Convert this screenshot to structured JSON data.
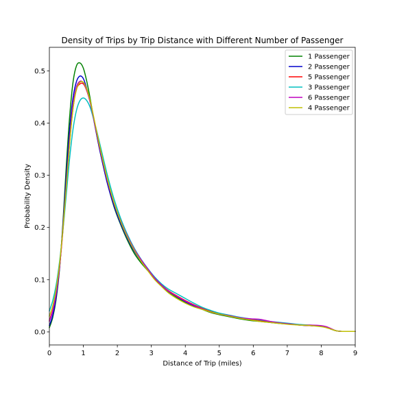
{
  "chart_data": {
    "type": "line",
    "title": "Density of Trips by Trip Distance with Different Number of Passenger",
    "xlabel": "Distance of Trip (miles)",
    "ylabel": "Probability Density",
    "xlim": [
      0,
      9
    ],
    "ylim": [
      -0.025,
      0.545
    ],
    "xticks": [
      0,
      1,
      2,
      3,
      4,
      5,
      6,
      7,
      8,
      9
    ],
    "yticks": [
      0.0,
      0.1,
      0.2,
      0.3,
      0.4,
      0.5
    ],
    "xtick_labels": [
      "0",
      "1",
      "2",
      "3",
      "4",
      "5",
      "6",
      "7",
      "8",
      "9"
    ],
    "ytick_labels": [
      "0.0",
      "0.1",
      "0.2",
      "0.3",
      "0.4",
      "0.5"
    ],
    "grid": false,
    "legend_position": "top-right",
    "x": [
      0,
      0.1,
      0.2,
      0.3,
      0.4,
      0.5,
      0.6,
      0.7,
      0.8,
      0.9,
      1.0,
      1.1,
      1.2,
      1.3,
      1.4,
      1.5,
      1.7,
      1.9,
      2.1,
      2.3,
      2.5,
      2.7,
      2.9,
      3.1,
      3.3,
      3.5,
      3.75,
      4.0,
      4.25,
      4.5,
      4.75,
      5.0,
      5.3,
      5.6,
      5.9,
      6.2,
      6.5,
      6.8,
      7.1,
      7.4,
      7.7,
      8.0,
      8.15,
      8.3,
      8.45,
      8.6,
      8.8,
      9.0
    ],
    "series": [
      {
        "name": "1 Passenger",
        "color": "#008000",
        "values": [
          0.008,
          0.028,
          0.063,
          0.121,
          0.21,
          0.32,
          0.415,
          0.48,
          0.51,
          0.515,
          0.505,
          0.48,
          0.447,
          0.41,
          0.375,
          0.343,
          0.287,
          0.24,
          0.205,
          0.175,
          0.15,
          0.132,
          0.117,
          0.101,
          0.088,
          0.077,
          0.066,
          0.057,
          0.049,
          0.043,
          0.037,
          0.033,
          0.029,
          0.025,
          0.022,
          0.02,
          0.018,
          0.016,
          0.015,
          0.013,
          0.012,
          0.011,
          0.009,
          0.005,
          0.002,
          0.001,
          0.001,
          0.001
        ]
      },
      {
        "name": "2 Passenger",
        "color": "#0000cc",
        "values": [
          0.012,
          0.032,
          0.067,
          0.123,
          0.205,
          0.3,
          0.39,
          0.45,
          0.48,
          0.49,
          0.485,
          0.466,
          0.44,
          0.408,
          0.375,
          0.343,
          0.286,
          0.242,
          0.207,
          0.178,
          0.154,
          0.135,
          0.119,
          0.102,
          0.089,
          0.078,
          0.068,
          0.058,
          0.05,
          0.044,
          0.038,
          0.034,
          0.03,
          0.027,
          0.023,
          0.021,
          0.019,
          0.017,
          0.015,
          0.013,
          0.012,
          0.011,
          0.009,
          0.005,
          0.002,
          0.001,
          0.001,
          0.001
        ]
      },
      {
        "name": "5 Passenger",
        "color": "#ff0000",
        "values": [
          0.022,
          0.042,
          0.075,
          0.125,
          0.195,
          0.28,
          0.365,
          0.43,
          0.465,
          0.475,
          0.475,
          0.462,
          0.44,
          0.41,
          0.378,
          0.347,
          0.292,
          0.247,
          0.212,
          0.183,
          0.158,
          0.138,
          0.12,
          0.103,
          0.09,
          0.079,
          0.069,
          0.06,
          0.052,
          0.045,
          0.039,
          0.035,
          0.031,
          0.027,
          0.024,
          0.021,
          0.019,
          0.017,
          0.015,
          0.013,
          0.012,
          0.011,
          0.009,
          0.005,
          0.002,
          0.001,
          0.001,
          0.001
        ]
      },
      {
        "name": "3 Passenger",
        "color": "#00bfbf",
        "values": [
          0.04,
          0.06,
          0.09,
          0.135,
          0.195,
          0.265,
          0.335,
          0.39,
          0.425,
          0.443,
          0.448,
          0.443,
          0.43,
          0.408,
          0.383,
          0.356,
          0.302,
          0.255,
          0.217,
          0.186,
          0.16,
          0.139,
          0.121,
          0.105,
          0.092,
          0.082,
          0.073,
          0.064,
          0.055,
          0.047,
          0.041,
          0.036,
          0.032,
          0.028,
          0.025,
          0.023,
          0.02,
          0.018,
          0.016,
          0.014,
          0.013,
          0.011,
          0.009,
          0.005,
          0.002,
          0.001,
          0.001,
          0.001
        ]
      },
      {
        "name": "6 Passenger",
        "color": "#bf00bf",
        "values": [
          0.02,
          0.04,
          0.073,
          0.125,
          0.198,
          0.285,
          0.372,
          0.437,
          0.47,
          0.48,
          0.477,
          0.463,
          0.44,
          0.41,
          0.378,
          0.347,
          0.292,
          0.247,
          0.212,
          0.183,
          0.158,
          0.138,
          0.12,
          0.103,
          0.09,
          0.078,
          0.068,
          0.059,
          0.051,
          0.044,
          0.038,
          0.034,
          0.031,
          0.027,
          0.025,
          0.024,
          0.02,
          0.017,
          0.015,
          0.013,
          0.013,
          0.012,
          0.01,
          0.006,
          0.002,
          0.001,
          0.001,
          0.001
        ]
      },
      {
        "name": "4 Passenger",
        "color": "#bfbf00",
        "values": [
          0.03,
          0.05,
          0.082,
          0.13,
          0.198,
          0.28,
          0.365,
          0.43,
          0.465,
          0.478,
          0.478,
          0.465,
          0.443,
          0.413,
          0.381,
          0.35,
          0.294,
          0.248,
          0.211,
          0.181,
          0.156,
          0.135,
          0.117,
          0.1,
          0.087,
          0.075,
          0.064,
          0.055,
          0.048,
          0.043,
          0.038,
          0.034,
          0.03,
          0.026,
          0.023,
          0.02,
          0.018,
          0.016,
          0.014,
          0.013,
          0.012,
          0.01,
          0.008,
          0.005,
          0.002,
          0.001,
          0.001,
          0.001
        ]
      }
    ]
  }
}
